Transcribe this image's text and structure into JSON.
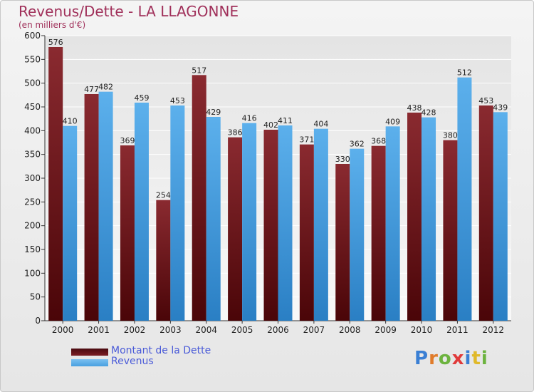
{
  "chart_data": {
    "type": "bar",
    "title": "Revenus/Dette - LA LLAGONNE",
    "subtitle": "(en milliers d'€)",
    "categories": [
      "2000",
      "2001",
      "2002",
      "2003",
      "2004",
      "2005",
      "2006",
      "2007",
      "2008",
      "2009",
      "2010",
      "2011",
      "2012"
    ],
    "series": [
      {
        "name": "Montant de la Dette",
        "color": "#7b1e24",
        "values": [
          576,
          477,
          369,
          254,
          517,
          386,
          402,
          371,
          330,
          368,
          438,
          380,
          453
        ]
      },
      {
        "name": "Revenus",
        "color": "#4aa0e0",
        "values": [
          410,
          482,
          459,
          453,
          429,
          416,
          411,
          404,
          362,
          409,
          428,
          512,
          439
        ]
      }
    ],
    "ylim": [
      0,
      600
    ],
    "yticks": [
      0,
      50,
      100,
      150,
      200,
      250,
      300,
      350,
      400,
      450,
      500,
      550,
      600
    ],
    "grid": true,
    "legend_position": "bottom-left"
  },
  "legend": {
    "items": [
      {
        "label": "Montant de la Dette",
        "color": "#7b1e24"
      },
      {
        "label": "Revenus",
        "color": "#4aa0e0"
      }
    ]
  },
  "logo": {
    "letters": [
      "P",
      "r",
      "o",
      "x",
      "i",
      "t",
      "i"
    ],
    "colors": [
      "#3a7fd4",
      "#e07b2a",
      "#6cb33e",
      "#e03a3a",
      "#3a7fd4",
      "#e0b92a",
      "#6cb33e"
    ]
  }
}
